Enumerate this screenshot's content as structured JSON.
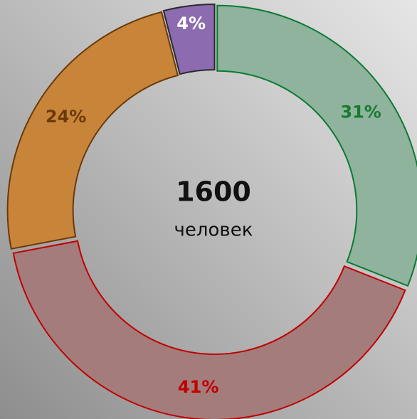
{
  "chart_data": {
    "type": "donut",
    "values": [
      31,
      41,
      24,
      4
    ],
    "value_labels": [
      "31%",
      "41%",
      "24%",
      "4%"
    ],
    "colors": [
      "#8fb39c",
      "#a47c7c",
      "#c8853a",
      "#8c6bb0"
    ],
    "center_value": "1600",
    "center_label": "человек"
  }
}
